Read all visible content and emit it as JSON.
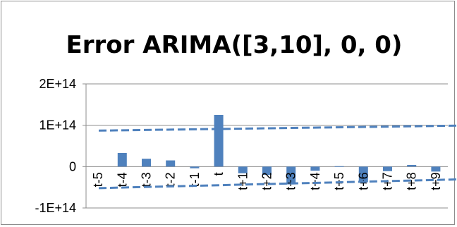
{
  "chart_data": {
    "type": "bar",
    "title": "Error ARIMA([3,10], 0, 0)",
    "xlabel": "",
    "ylabel": "",
    "categories": [
      "t-5",
      "t-4",
      "t-3",
      "t-2",
      "t-1",
      "t",
      "t+1",
      "t+2",
      "t+3",
      "t+4",
      "t+5",
      "t+6",
      "t+7",
      "t+8",
      "t+9"
    ],
    "values": [
      0,
      33000000000000.0,
      19000000000000.0,
      15000000000000.0,
      -4000000000000.0,
      125000000000000.0,
      -16000000000000.0,
      -20000000000000.0,
      -43000000000000.0,
      -10000000000000.0,
      1000000000000.0,
      -38000000000000.0,
      -11000000000000.0,
      4000000000000.0,
      -12000000000000.0
    ],
    "ylim": [
      -100000000000000.0,
      200000000000000.0
    ],
    "yticks": [
      -100000000000000.0,
      0,
      100000000000000.0,
      200000000000000.0
    ],
    "ytick_labels": [
      "-1E+14",
      "0",
      "1E+14",
      "2E+14"
    ],
    "gridlines": true,
    "legend": "none",
    "bar_color": "#4f81bd",
    "trendlines": [
      {
        "style": "dashed",
        "color": "#4f81bd",
        "start": 87000000000000.0,
        "end": 99000000000000.0
      },
      {
        "style": "dashed",
        "color": "#4f81bd",
        "start": -52000000000000.0,
        "end": -31000000000000.0
      }
    ]
  }
}
